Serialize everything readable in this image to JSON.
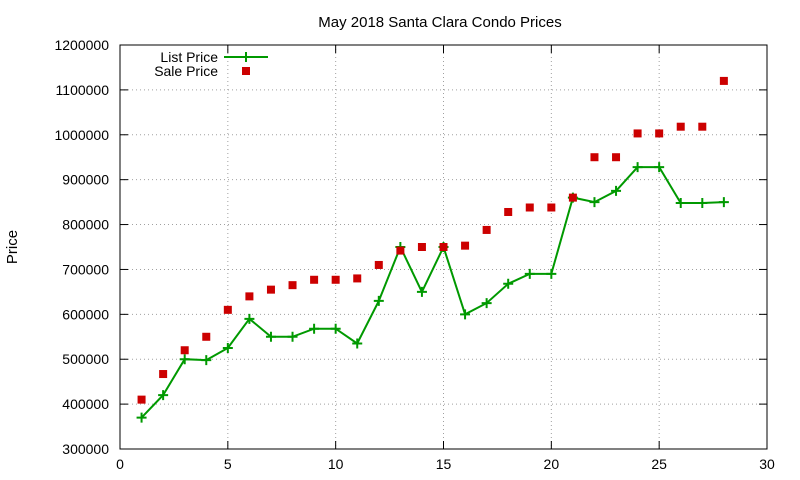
{
  "chart_data": {
    "type": "line",
    "title": "May 2018 Santa Clara Condo Prices",
    "xlabel": "",
    "ylabel": "Price",
    "xlim": [
      0,
      30
    ],
    "ylim": [
      300000,
      1200000
    ],
    "xticks": [
      0,
      5,
      10,
      15,
      20,
      25,
      30
    ],
    "yticks": [
      300000,
      400000,
      500000,
      600000,
      700000,
      800000,
      900000,
      1000000,
      1100000,
      1200000
    ],
    "grid": true,
    "legend_position": "top-left",
    "series": [
      {
        "name": "List Price",
        "kind": "line-with-plus-markers",
        "color": "#009900",
        "x": [
          1,
          2,
          3,
          4,
          5,
          6,
          7,
          8,
          9,
          10,
          11,
          12,
          13,
          14,
          15,
          16,
          17,
          18,
          19,
          20,
          21,
          22,
          23,
          24,
          25,
          26,
          27,
          28
        ],
        "values": [
          370000,
          420000,
          500000,
          498000,
          525000,
          590000,
          550000,
          550000,
          568000,
          568000,
          535000,
          630000,
          750000,
          650000,
          750000,
          600000,
          625000,
          668000,
          690000,
          690000,
          860000,
          850000,
          875000,
          928000,
          928000,
          848000,
          848000,
          850000
        ]
      },
      {
        "name": "Sale Price",
        "kind": "square-markers",
        "color": "#cc0000",
        "x": [
          1,
          2,
          3,
          4,
          5,
          6,
          7,
          8,
          9,
          10,
          11,
          12,
          13,
          14,
          15,
          16,
          17,
          18,
          19,
          20,
          21,
          22,
          23,
          24,
          25,
          26,
          27,
          28
        ],
        "values": [
          410000,
          467000,
          520000,
          550000,
          610000,
          640000,
          655000,
          665000,
          677000,
          677000,
          680000,
          710000,
          742000,
          750000,
          750000,
          753000,
          788000,
          828000,
          838000,
          838000,
          860000,
          950000,
          950000,
          1003000,
          1003000,
          1018000,
          1018000,
          1120000
        ]
      }
    ]
  }
}
